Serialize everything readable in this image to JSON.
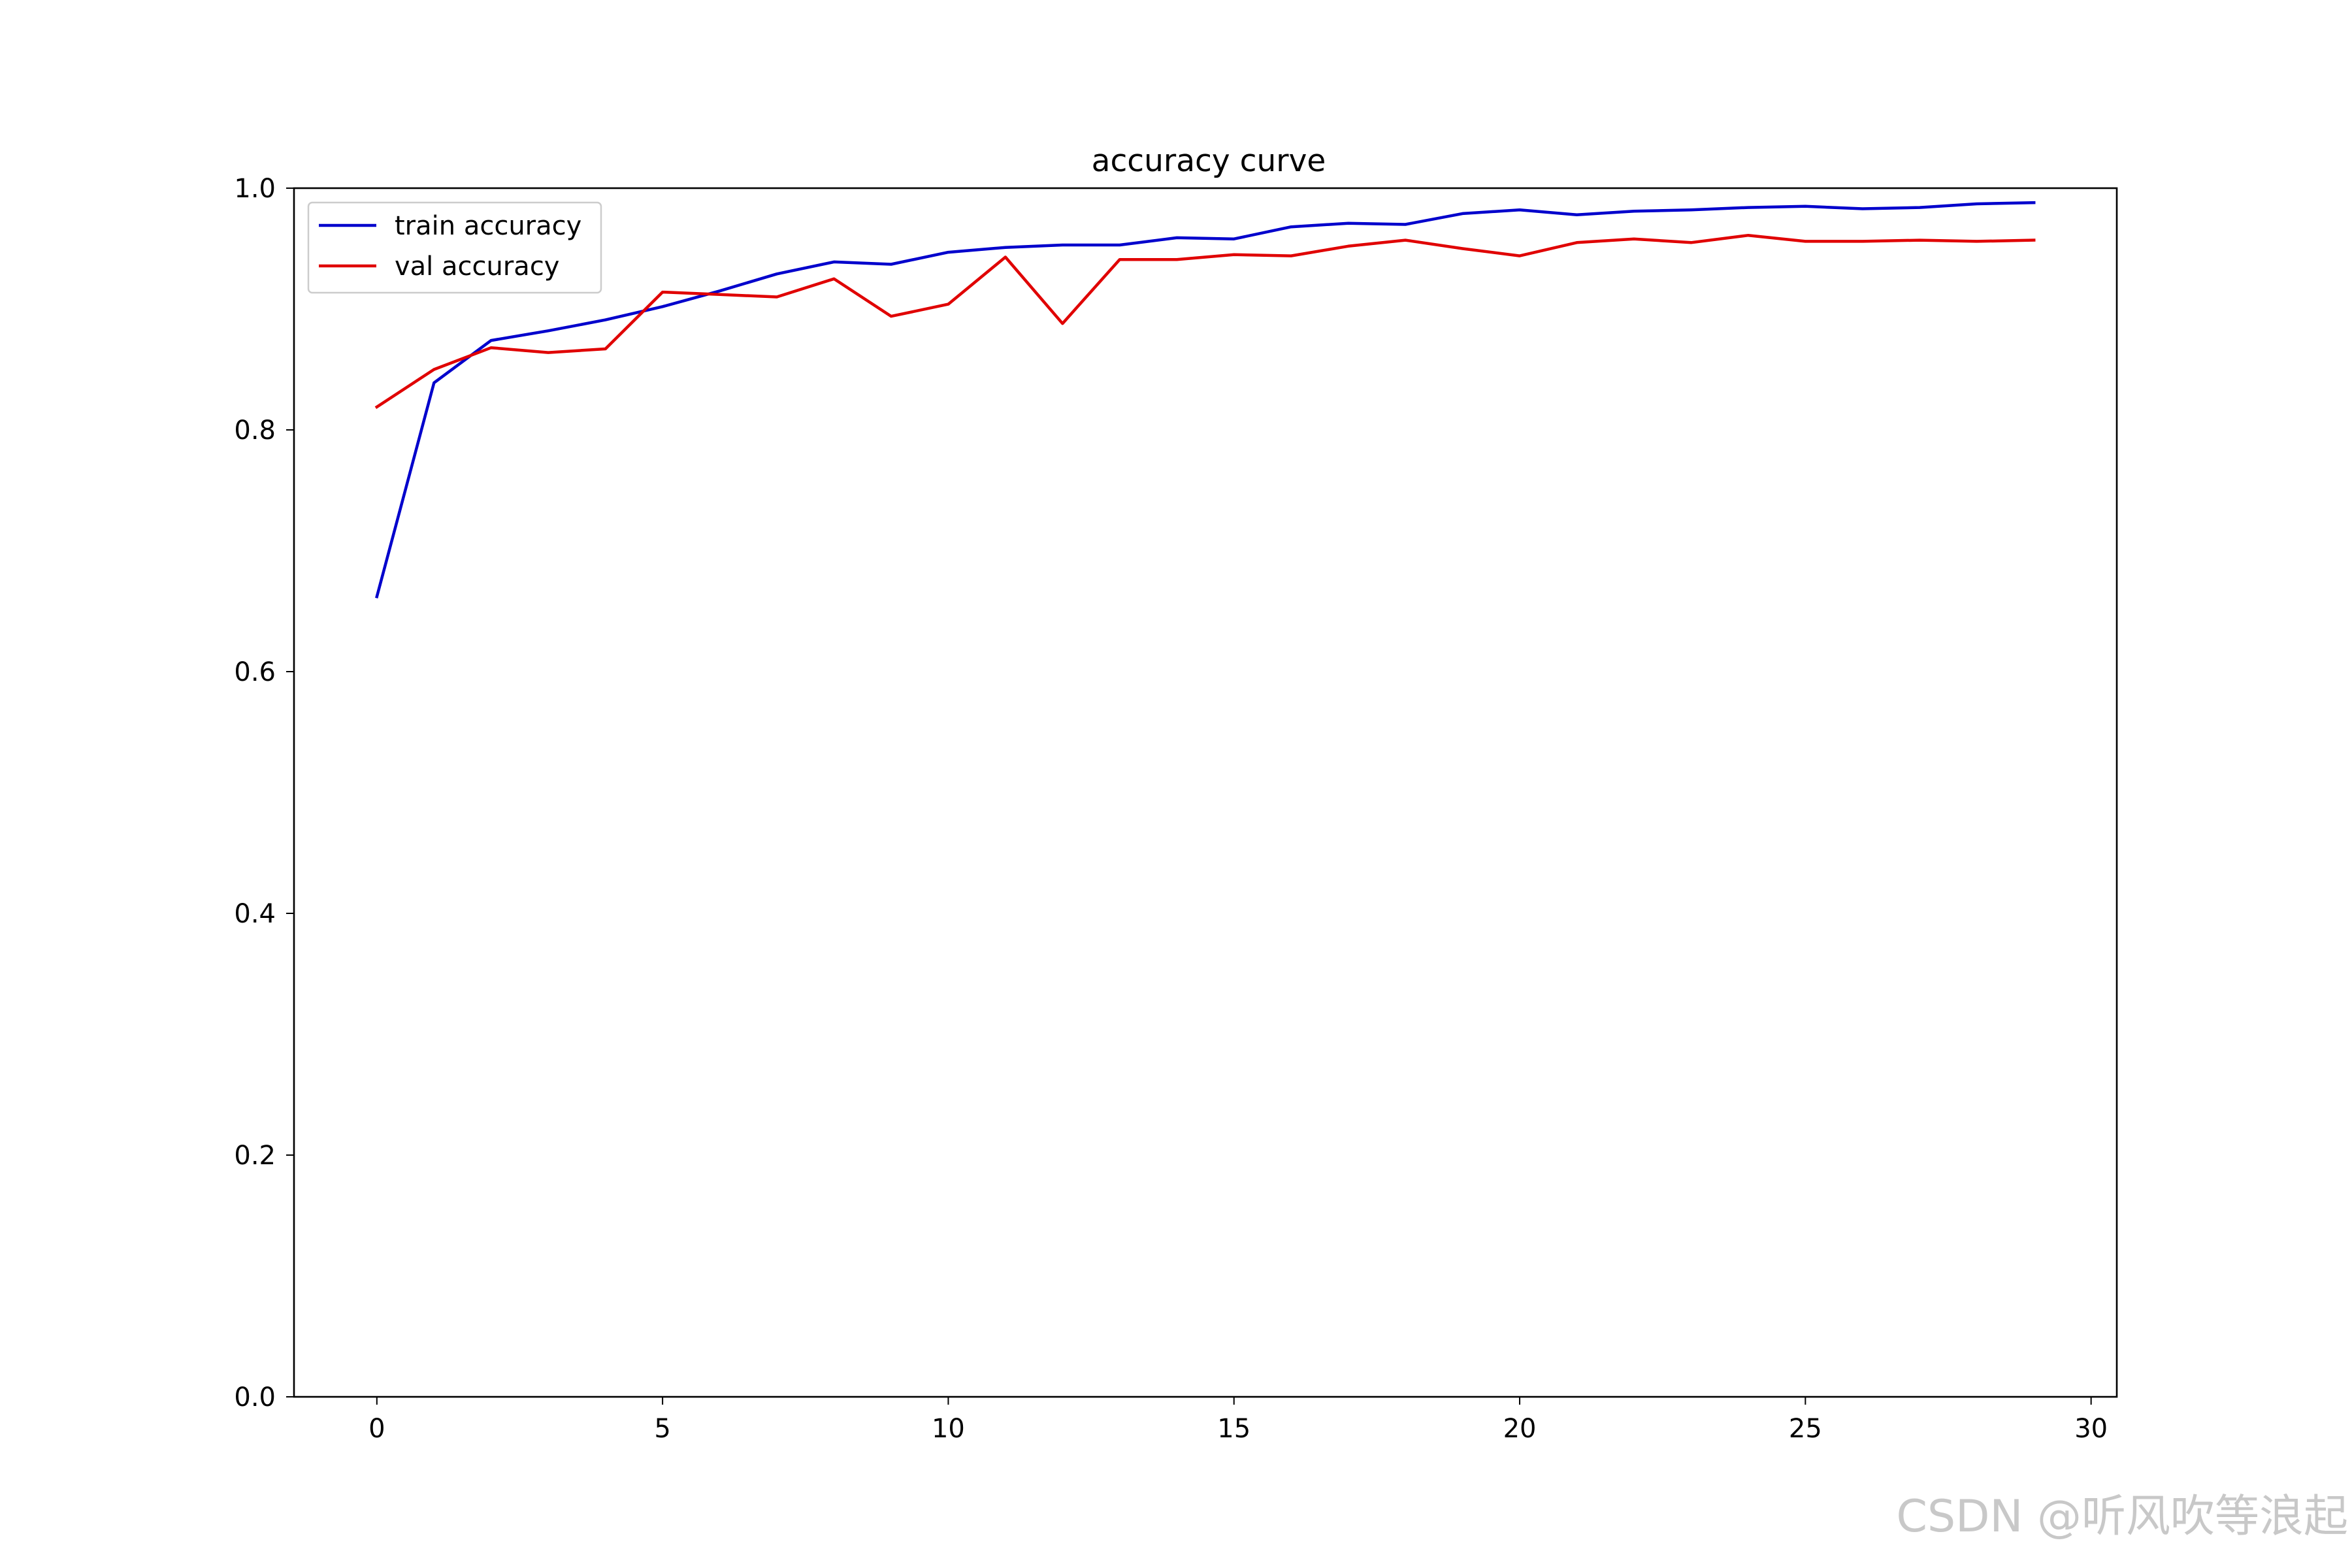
{
  "chart_data": {
    "type": "line",
    "title": "accuracy curve",
    "xlabel": "",
    "ylabel": "",
    "xlim": [
      -1.45,
      30.45
    ],
    "ylim": [
      0.0,
      1.0
    ],
    "xticks": [
      0,
      5,
      10,
      15,
      20,
      25,
      30
    ],
    "yticks": [
      0.0,
      0.2,
      0.4,
      0.6,
      0.8,
      1.0
    ],
    "xtick_labels": [
      "0",
      "5",
      "10",
      "15",
      "20",
      "25",
      "30"
    ],
    "ytick_labels": [
      "0.0",
      "0.2",
      "0.4",
      "0.6",
      "0.8",
      "1.0"
    ],
    "grid": false,
    "legend_position": "top-left",
    "x": [
      0,
      1,
      2,
      3,
      4,
      5,
      6,
      7,
      8,
      9,
      10,
      11,
      12,
      13,
      14,
      15,
      16,
      17,
      18,
      19,
      20,
      21,
      22,
      23,
      24,
      25,
      26,
      27,
      28,
      29
    ],
    "series": [
      {
        "name": "train accuracy",
        "color": "#0000cc",
        "values": [
          0.662,
          0.839,
          0.874,
          0.882,
          0.891,
          0.902,
          0.915,
          0.929,
          0.939,
          0.937,
          0.947,
          0.951,
          0.953,
          0.953,
          0.959,
          0.958,
          0.968,
          0.971,
          0.97,
          0.979,
          0.982,
          0.978,
          0.981,
          0.982,
          0.984,
          0.985,
          0.983,
          0.984,
          0.987,
          0.988
        ]
      },
      {
        "name": "val accuracy",
        "color": "#e00000",
        "values": [
          0.819,
          0.85,
          0.868,
          0.864,
          0.867,
          0.914,
          0.912,
          0.91,
          0.925,
          0.894,
          0.904,
          0.943,
          0.888,
          0.941,
          0.941,
          0.945,
          0.944,
          0.952,
          0.957,
          0.95,
          0.944,
          0.955,
          0.958,
          0.955,
          0.961,
          0.956,
          0.956,
          0.957,
          0.956,
          0.957
        ]
      }
    ]
  },
  "watermark": "CSDN @听风吹等浪起"
}
